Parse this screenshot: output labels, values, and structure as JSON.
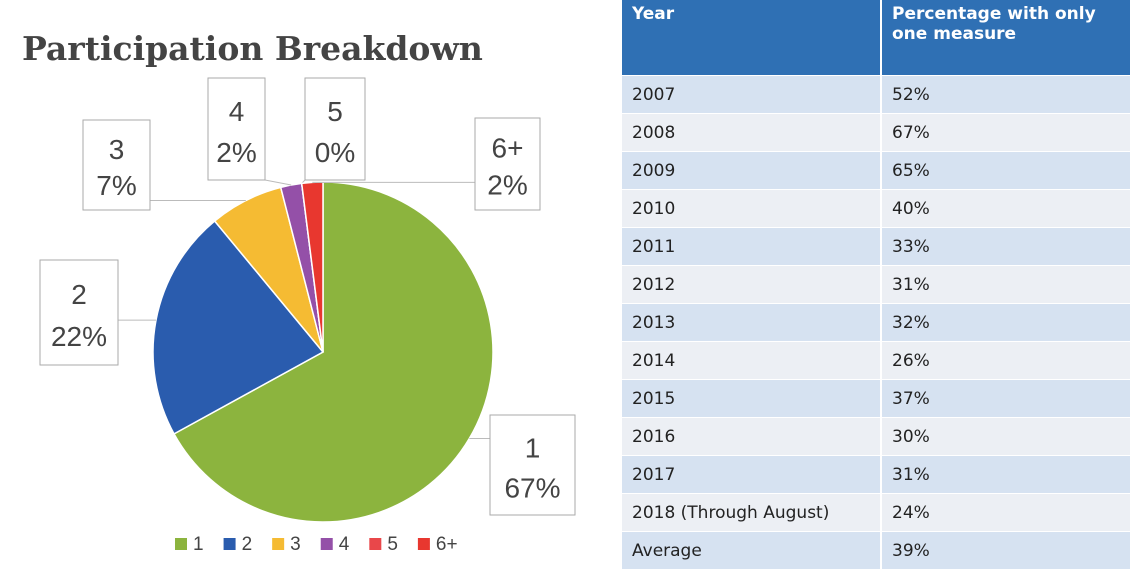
{
  "chart_data": {
    "type": "pie",
    "title": "Participation Breakdown",
    "categories": [
      "1",
      "2",
      "3",
      "4",
      "5",
      "6+"
    ],
    "values": [
      67,
      22,
      7,
      2,
      0,
      2
    ],
    "value_labels": [
      "67%",
      "22%",
      "7%",
      "2%",
      "0%",
      "2%"
    ],
    "colors": [
      "#8cb43e",
      "#2a5cae",
      "#f5bb33",
      "#9450a8",
      "#e9474a",
      "#e8372f"
    ],
    "legend": "bottom"
  },
  "table": {
    "header": [
      "Year",
      "Percentage with only one measure"
    ],
    "rows": [
      [
        "2007",
        "52%"
      ],
      [
        "2008",
        "67%"
      ],
      [
        "2009",
        "65%"
      ],
      [
        "2010",
        "40%"
      ],
      [
        "2011",
        "33%"
      ],
      [
        "2012",
        "31%"
      ],
      [
        "2013",
        "32%"
      ],
      [
        "2014",
        "26%"
      ],
      [
        "2015",
        "37%"
      ],
      [
        "2016",
        "30%"
      ],
      [
        "2017",
        "31%"
      ],
      [
        "2018 (Through August)",
        "24%"
      ],
      [
        "Average",
        "39%"
      ]
    ]
  }
}
